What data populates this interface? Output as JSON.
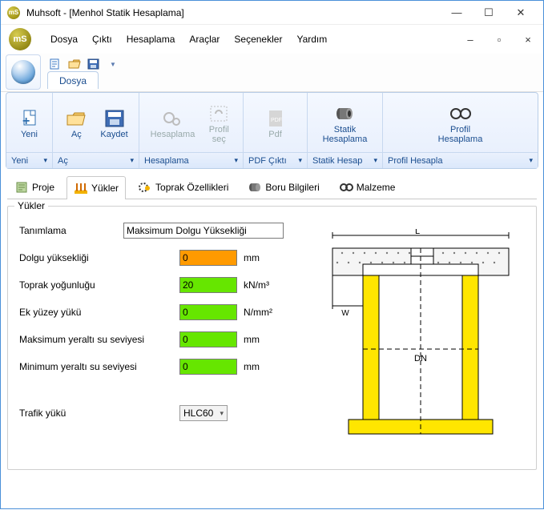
{
  "window": {
    "title": "Muhsoft - [Menhol Statik Hesaplama]",
    "logo_text": "mS"
  },
  "menu": {
    "items": [
      "Dosya",
      "Çıktı",
      "Hesaplama",
      "Araçlar",
      "Seçenekler",
      "Yardım"
    ]
  },
  "quick": {
    "tab": "Dosya"
  },
  "ribbon": {
    "groups": [
      {
        "label": "Yeni",
        "buttons": [
          {
            "key": "yeni",
            "label": "Yeni",
            "enabled": true
          }
        ]
      },
      {
        "label": "Aç",
        "buttons": [
          {
            "key": "ac",
            "label": "Aç",
            "enabled": true
          },
          {
            "key": "kaydet",
            "label": "Kaydet",
            "enabled": true
          }
        ]
      },
      {
        "label": "Hesaplama",
        "buttons": [
          {
            "key": "hesap",
            "label": "Hesaplama",
            "enabled": false
          },
          {
            "key": "profilsec",
            "label": "Profil\nseç",
            "enabled": false
          }
        ]
      },
      {
        "label": "PDF Çıktı",
        "buttons": [
          {
            "key": "pdf",
            "label": "Pdf",
            "enabled": false
          }
        ]
      },
      {
        "label": "Statik Hesap",
        "buttons": [
          {
            "key": "statik",
            "label": "Statik\nHesaplama",
            "enabled": true
          }
        ]
      },
      {
        "label": "Profil Hesapla",
        "buttons": [
          {
            "key": "profilh",
            "label": "Profil\nHesaplama",
            "enabled": true
          }
        ]
      }
    ]
  },
  "tabs": {
    "items": [
      "Proje",
      "Yükler",
      "Toprak Özellikleri",
      "Boru Bilgileri",
      "Malzeme"
    ],
    "active": 1
  },
  "yukler": {
    "group_title": "Yükler",
    "tanimlama_label": "Tanımlama",
    "tanimlama_value": "Maksimum Dolgu Yüksekliği",
    "rows": [
      {
        "label": "Dolgu yüksekliği",
        "value": "0",
        "unit": "mm",
        "color": "orange"
      },
      {
        "label": "Toprak yoğunluğu",
        "value": "20",
        "unit": "kN/m³",
        "color": "green"
      },
      {
        "label": "Ek yüzey yükü",
        "value": "0",
        "unit": "N/mm²",
        "color": "green"
      },
      {
        "label": "Maksimum yeraltı su seviyesi",
        "value": "0",
        "unit": "mm",
        "color": "green"
      },
      {
        "label": "Minimum yeraltı su seviyesi",
        "value": "0",
        "unit": "mm",
        "color": "green"
      }
    ],
    "trafik_label": "Trafik yükü",
    "trafik_value": "HLC60",
    "diagram": {
      "L": "L",
      "W": "W",
      "DN": "DN",
      "colors": {
        "pipe": "#ffe600",
        "edge": "#000",
        "concrete_fill": "#f5f5f5",
        "hatch": "#7a7a7a"
      }
    }
  }
}
